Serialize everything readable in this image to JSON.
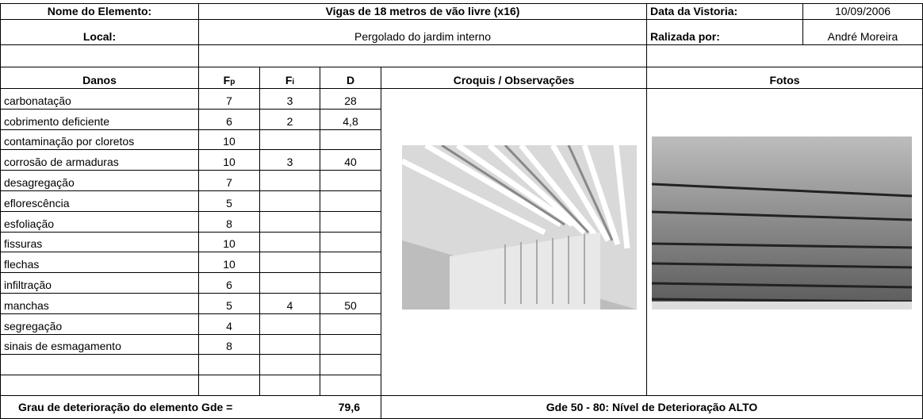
{
  "header": {
    "name_label": "Nome do Elemento:",
    "name": "Vigas de 18 metros de vão livre  (x16)",
    "date_label": "Data da Vistoria:",
    "date": "10/09/2006",
    "local_label": "Local:",
    "local": "Pergolado do jardim interno",
    "by_label": "Ralizada por:",
    "by": "André Moreira"
  },
  "table": {
    "columns": [
      {
        "main": "Danos"
      },
      {
        "main": "F",
        "sub": "p"
      },
      {
        "main": "F",
        "sub": "i"
      },
      {
        "main": "D"
      },
      {
        "main": "Croquis / Observações"
      },
      {
        "main": "Fotos"
      }
    ],
    "rows": [
      [
        "carbonatação",
        "7",
        "3",
        "28"
      ],
      [
        "cobrimento deficiente",
        "6",
        "2",
        "4,8"
      ],
      [
        "contaminação por cloretos",
        "10",
        null,
        null
      ],
      [
        "corrosão de armaduras",
        "10",
        "3",
        "40"
      ],
      [
        "desagregação",
        "7",
        null,
        null
      ],
      [
        "eflorescência",
        "5",
        null,
        null
      ],
      [
        "esfoliação",
        "8",
        null,
        null
      ],
      [
        "fissuras",
        "10",
        null,
        null
      ],
      [
        "flechas",
        "10",
        null,
        null
      ],
      [
        "infiltração",
        "6",
        null,
        null
      ],
      [
        "manchas",
        "5",
        "4",
        "50"
      ],
      [
        "segregação",
        "4",
        null,
        null
      ],
      [
        "sinais de esmagamento",
        "8",
        null,
        null
      ],
      [
        null,
        null,
        null,
        null
      ],
      [
        null,
        null,
        null,
        null
      ]
    ]
  },
  "footer": {
    "gde_label": "Grau de deterioração do elemento Gde  =",
    "gde_value": "79,6",
    "level": "Gde 50 - 80:  Nível de Deterioração ALTO"
  }
}
